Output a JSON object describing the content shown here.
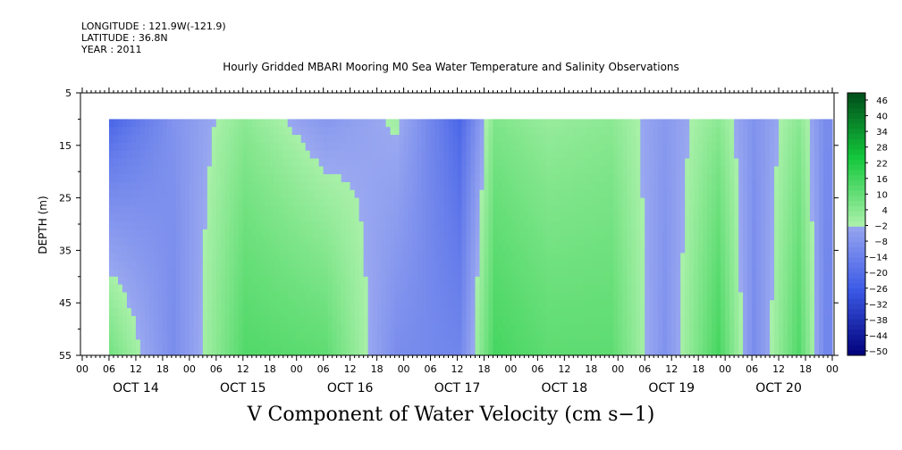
{
  "header": {
    "longitude": "LONGITUDE : 121.9W(-121.9)",
    "latitude": "LATITUDE : 36.8N",
    "year": "YEAR : 2011"
  },
  "chart_data": {
    "type": "heatmap",
    "title": "Hourly Gridded MBARI Mooring M0 Sea Water Temperature and Salinity Observations",
    "xlabel": "V Component of Water Velocity (cm s−1)",
    "ylabel": "DEPTH (m)",
    "ylim": [
      55,
      5
    ],
    "y_ticks": [
      5,
      15,
      25,
      35,
      45,
      55
    ],
    "data_depth_range": [
      10,
      55
    ],
    "hour_ticks": [
      "00",
      "06",
      "12",
      "18",
      "00",
      "06",
      "12",
      "18",
      "00",
      "06",
      "12",
      "18",
      "00",
      "06",
      "12",
      "18",
      "00",
      "06",
      "12",
      "18",
      "00",
      "06",
      "12",
      "18",
      "00",
      "06",
      "12",
      "18",
      "00"
    ],
    "day_labels": [
      "OCT 14",
      "OCT 15",
      "OCT 16",
      "OCT 17",
      "OCT 18",
      "OCT 19",
      "OCT 20"
    ],
    "data_start_hour": 6,
    "data_end_hour": 168,
    "colorbar": {
      "labels": [
        "46",
        "40",
        "34",
        "28",
        "22",
        "16",
        "10",
        "4",
        "−2",
        "−8",
        "−14",
        "−20",
        "−26",
        "−32",
        "−38",
        "−44",
        "−50"
      ],
      "range": [
        -50,
        52
      ],
      "low_color": "#00007a",
      "mid_low_color": "#9aa8f0",
      "mid_high_color": "#a8f0a8",
      "high_color": "#004d1a"
    },
    "pattern": {
      "description_values": "time-depth field of northward velocity; alternating positive (green) and negative (blue) bands",
      "key_times_hours": [
        6,
        20,
        36,
        54,
        70,
        84,
        92,
        104,
        118,
        130,
        142,
        150,
        160,
        166
      ],
      "key_values_deep": [
        10,
        -8,
        16,
        14,
        -8,
        -10,
        18,
        14,
        14,
        -6,
        18,
        -8,
        16,
        -10
      ],
      "key_values_shallow": [
        -20,
        -6,
        6,
        -4,
        2,
        -20,
        8,
        4,
        6,
        -4,
        6,
        -6,
        6,
        -8
      ]
    }
  }
}
